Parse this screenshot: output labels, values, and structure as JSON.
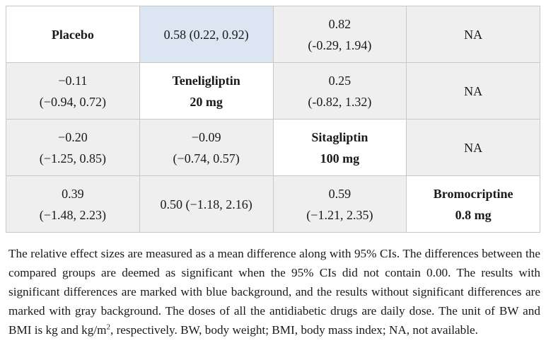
{
  "table": {
    "rows": [
      [
        {
          "type": "drug",
          "lines": [
            "Placebo"
          ]
        },
        {
          "type": "blue",
          "lines": [
            "0.58 (0.22, 0.92)"
          ]
        },
        {
          "type": "gray",
          "lines": [
            "0.82",
            "(-0.29, 1.94)"
          ]
        },
        {
          "type": "gray",
          "lines": [
            "NA"
          ]
        }
      ],
      [
        {
          "type": "gray",
          "lines": [
            "−0.11",
            "(−0.94, 0.72)"
          ]
        },
        {
          "type": "drug",
          "lines": [
            "Teneligliptin",
            "20 mg"
          ]
        },
        {
          "type": "gray",
          "lines": [
            "0.25",
            "(-0.82, 1.32)"
          ]
        },
        {
          "type": "gray",
          "lines": [
            "NA"
          ]
        }
      ],
      [
        {
          "type": "gray",
          "lines": [
            "−0.20",
            "(−1.25, 0.85)"
          ]
        },
        {
          "type": "gray",
          "lines": [
            "−0.09",
            "(−0.74, 0.57)"
          ]
        },
        {
          "type": "drug",
          "lines": [
            "Sitagliptin",
            "100 mg"
          ]
        },
        {
          "type": "gray",
          "lines": [
            "NA"
          ]
        }
      ],
      [
        {
          "type": "gray",
          "lines": [
            "0.39",
            "(−1.48, 2.23)"
          ]
        },
        {
          "type": "gray",
          "lines": [
            "0.50 (−1.18, 2.16)"
          ]
        },
        {
          "type": "gray",
          "lines": [
            "0.59",
            "(−1.21, 2.35)"
          ]
        },
        {
          "type": "drug",
          "lines": [
            "Bromocriptine",
            "0.8 mg"
          ]
        }
      ]
    ]
  },
  "footnote": {
    "text_before_sup": "The relative effect sizes are measured as a mean difference along with 95% CIs. The differences between the compared groups are deemed as significant when the 95% CIs did not contain 0.00. The results with significant differences are marked with blue background, and the results without significant differences are marked with gray background. The doses of all the antidiabetic drugs are daily dose. The unit of BW and BMI is kg and kg/m",
    "sup": "2",
    "text_after_sup": ", respectively. BW, body weight; BMI, body mass index; NA, not available."
  }
}
